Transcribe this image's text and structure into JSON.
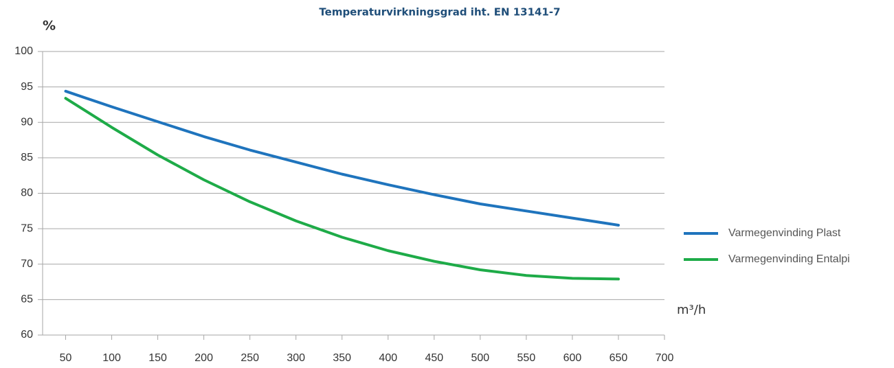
{
  "chart_data": {
    "type": "line",
    "title": "Temperaturvirkningsgrad iht. EN 13141-7",
    "y_label": "%",
    "x_label": "m³/h",
    "x": [
      50,
      100,
      150,
      200,
      250,
      300,
      350,
      400,
      450,
      500,
      550,
      600,
      650
    ],
    "series": [
      {
        "name": "Varmegenvinding Plast",
        "color": "#1f74bd",
        "values": [
          94.4,
          92.2,
          90.1,
          88.0,
          86.1,
          84.4,
          82.7,
          81.2,
          79.8,
          78.5,
          77.5,
          76.5,
          75.5
        ]
      },
      {
        "name": "Varmegenvinding Entalpi",
        "color": "#1eab48",
        "values": [
          93.4,
          89.3,
          85.4,
          81.9,
          78.8,
          76.1,
          73.8,
          71.9,
          70.4,
          69.2,
          68.4,
          68.0,
          67.9
        ]
      }
    ],
    "xlim": [
      25,
      700
    ],
    "xticks": [
      50,
      100,
      150,
      200,
      250,
      300,
      350,
      400,
      450,
      500,
      550,
      600,
      650,
      700
    ],
    "ylim": [
      60,
      100
    ],
    "yticks": [
      60,
      65,
      70,
      75,
      80,
      85,
      90,
      95,
      100
    ],
    "grid": true,
    "legend": "right"
  }
}
